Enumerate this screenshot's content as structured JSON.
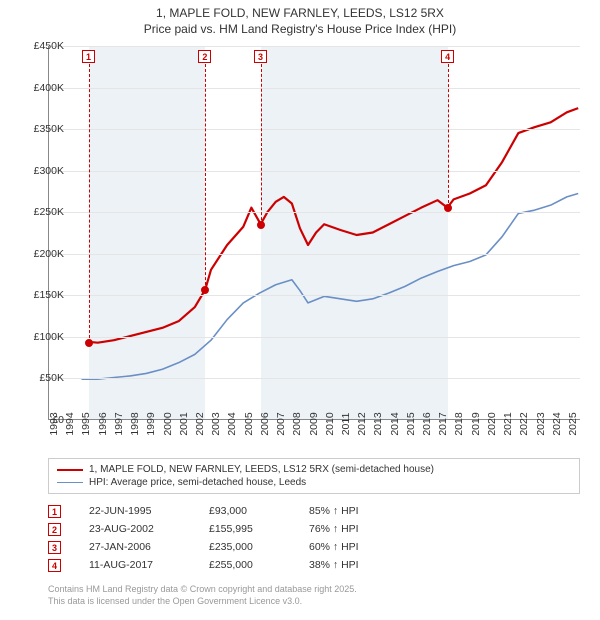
{
  "title": {
    "line1": "1, MAPLE FOLD, NEW FARNLEY, LEEDS, LS12 5RX",
    "line2": "Price paid vs. HM Land Registry's House Price Index (HPI)"
  },
  "chart": {
    "type": "line",
    "background_color": "#ffffff",
    "grid_color": "#e5e5e5",
    "shade_color": "#dfe8f0",
    "x_years": [
      1993,
      1994,
      1995,
      1996,
      1997,
      1998,
      1999,
      2000,
      2001,
      2002,
      2003,
      2004,
      2005,
      2006,
      2007,
      2008,
      2009,
      2010,
      2011,
      2012,
      2013,
      2014,
      2015,
      2016,
      2017,
      2018,
      2019,
      2020,
      2021,
      2022,
      2023,
      2024,
      2025
    ],
    "xlim": [
      1993,
      2025.8
    ],
    "ylim": [
      0,
      450
    ],
    "ytick_step": 50,
    "ytick_labels": [
      "£0",
      "£50K",
      "£100K",
      "£150K",
      "£200K",
      "£250K",
      "£300K",
      "£350K",
      "£400K",
      "£450K"
    ],
    "label_fontsize": 10.5,
    "series": [
      {
        "name": "1, MAPLE FOLD, NEW FARNLEY, LEEDS, LS12 5RX (semi-detached house)",
        "color": "#cc0000",
        "width": 2.2,
        "data": [
          [
            1995.47,
            93
          ],
          [
            1996,
            92
          ],
          [
            1997,
            95
          ],
          [
            1998,
            100
          ],
          [
            1999,
            105
          ],
          [
            2000,
            110
          ],
          [
            2001,
            118
          ],
          [
            2002,
            135
          ],
          [
            2002.64,
            156
          ],
          [
            2003,
            180
          ],
          [
            2004,
            210
          ],
          [
            2005,
            232
          ],
          [
            2005.5,
            255
          ],
          [
            2006.07,
            235
          ],
          [
            2006.5,
            250
          ],
          [
            2007,
            262
          ],
          [
            2007.5,
            268
          ],
          [
            2008,
            260
          ],
          [
            2008.5,
            230
          ],
          [
            2009,
            210
          ],
          [
            2009.5,
            225
          ],
          [
            2010,
            235
          ],
          [
            2011,
            228
          ],
          [
            2012,
            222
          ],
          [
            2013,
            225
          ],
          [
            2014,
            235
          ],
          [
            2015,
            245
          ],
          [
            2016,
            255
          ],
          [
            2017,
            264
          ],
          [
            2017.61,
            255
          ],
          [
            2018,
            265
          ],
          [
            2019,
            272
          ],
          [
            2020,
            282
          ],
          [
            2021,
            310
          ],
          [
            2022,
            345
          ],
          [
            2023,
            352
          ],
          [
            2024,
            358
          ],
          [
            2025,
            370
          ],
          [
            2025.7,
            375
          ]
        ]
      },
      {
        "name": "HPI: Average price, semi-detached house, Leeds",
        "color": "#6a8fc5",
        "width": 1.6,
        "data": [
          [
            1995,
            48
          ],
          [
            1996,
            48
          ],
          [
            1997,
            50
          ],
          [
            1998,
            52
          ],
          [
            1999,
            55
          ],
          [
            2000,
            60
          ],
          [
            2001,
            68
          ],
          [
            2002,
            78
          ],
          [
            2003,
            95
          ],
          [
            2004,
            120
          ],
          [
            2005,
            140
          ],
          [
            2006,
            152
          ],
          [
            2007,
            162
          ],
          [
            2008,
            168
          ],
          [
            2008.5,
            155
          ],
          [
            2009,
            140
          ],
          [
            2010,
            148
          ],
          [
            2011,
            145
          ],
          [
            2012,
            142
          ],
          [
            2013,
            145
          ],
          [
            2014,
            152
          ],
          [
            2015,
            160
          ],
          [
            2016,
            170
          ],
          [
            2017,
            178
          ],
          [
            2018,
            185
          ],
          [
            2019,
            190
          ],
          [
            2020,
            198
          ],
          [
            2021,
            220
          ],
          [
            2022,
            248
          ],
          [
            2023,
            252
          ],
          [
            2024,
            258
          ],
          [
            2025,
            268
          ],
          [
            2025.7,
            272
          ]
        ]
      }
    ],
    "sale_markers": [
      {
        "n": "1",
        "x": 1995.47,
        "y": 93
      },
      {
        "n": "2",
        "x": 2002.64,
        "y": 156
      },
      {
        "n": "3",
        "x": 2006.07,
        "y": 235
      },
      {
        "n": "4",
        "x": 2017.61,
        "y": 255
      }
    ],
    "shaded_ranges": [
      [
        1995.47,
        2002.64
      ],
      [
        2006.07,
        2017.61
      ]
    ]
  },
  "legend": [
    {
      "color": "#cc0000",
      "width": 2.2,
      "label": "1, MAPLE FOLD, NEW FARNLEY, LEEDS, LS12 5RX (semi-detached house)"
    },
    {
      "color": "#6a8fc5",
      "width": 1.6,
      "label": "HPI: Average price, semi-detached house, Leeds"
    }
  ],
  "sales_table": [
    {
      "n": "1",
      "date": "22-JUN-1995",
      "price": "£93,000",
      "hpi": "85% ↑ HPI"
    },
    {
      "n": "2",
      "date": "23-AUG-2002",
      "price": "£155,995",
      "hpi": "76% ↑ HPI"
    },
    {
      "n": "3",
      "date": "27-JAN-2006",
      "price": "£235,000",
      "hpi": "60% ↑ HPI"
    },
    {
      "n": "4",
      "date": "11-AUG-2017",
      "price": "£255,000",
      "hpi": "38% ↑ HPI"
    }
  ],
  "footer": {
    "line1": "Contains HM Land Registry data © Crown copyright and database right 2025.",
    "line2": "This data is licensed under the Open Government Licence v3.0."
  }
}
